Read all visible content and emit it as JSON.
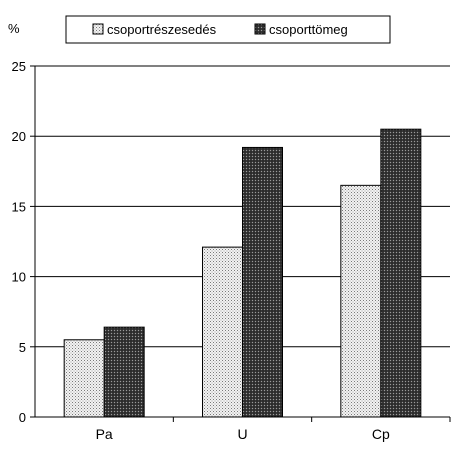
{
  "chart_data": {
    "type": "bar",
    "ylabel": "%",
    "categories": [
      "Pa",
      "U",
      "Cp"
    ],
    "series": [
      {
        "name": "csoportrészesedés",
        "values": [
          5.5,
          12.1,
          16.5
        ],
        "pattern": "light-dotted"
      },
      {
        "name": "csoporttömeg",
        "values": [
          6.4,
          19.2,
          20.5
        ],
        "pattern": "dark-dotted"
      }
    ],
    "ylim": [
      0,
      25
    ],
    "yticks": [
      0,
      5,
      10,
      15,
      20,
      25
    ],
    "grid": true,
    "legend_position": "top"
  }
}
